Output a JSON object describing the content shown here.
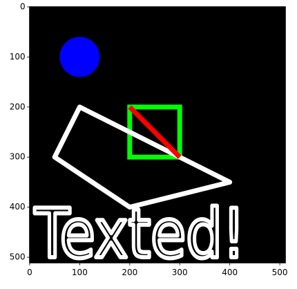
{
  "chart_data": {
    "type": "image",
    "background": "#000000",
    "xlim": [
      -0.5,
      511.5
    ],
    "ylim": [
      511.5,
      -0.5
    ],
    "xticks": [
      0,
      100,
      200,
      300,
      400,
      500
    ],
    "yticks": [
      0,
      100,
      200,
      300,
      400,
      500
    ],
    "circle": {
      "cx": 100,
      "cy": 100,
      "r": 40,
      "color": "#0000ff"
    },
    "rectangle": {
      "x0": 200,
      "y0": 200,
      "x1": 300,
      "y1": 300,
      "color": "#00ff00"
    },
    "line": {
      "x0": 200,
      "y0": 200,
      "x1": 300,
      "y1": 300,
      "color": "#ff0000"
    },
    "polygon": {
      "x": [
        100,
        50,
        200,
        400
      ],
      "y": [
        200,
        300,
        400,
        350
      ],
      "color": "#ffffff"
    },
    "text": {
      "label": "Texted!",
      "x": 10,
      "y": 500,
      "color": "#ffffff"
    }
  }
}
